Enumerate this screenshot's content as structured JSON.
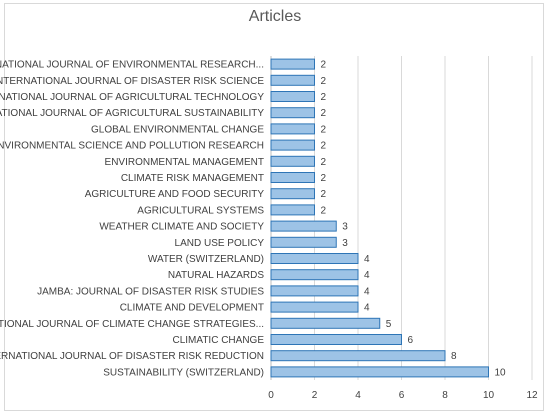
{
  "chart_data": {
    "type": "bar",
    "orientation": "horizontal",
    "title": "Articles",
    "xlabel": "",
    "ylabel": "",
    "xlim": [
      0,
      12
    ],
    "xticks": [
      0,
      2,
      4,
      6,
      8,
      10,
      12
    ],
    "grid": "vertical",
    "categories": [
      "INTERNATIONAL JOURNAL OF ENVIRONMENTAL RESEARCH...",
      "INTERNATIONAL JOURNAL OF DISASTER RISK SCIENCE",
      "INTERNATIONAL JOURNAL OF AGRICULTURAL TECHNOLOGY",
      "INTERNATIONAL JOURNAL OF AGRICULTURAL SUSTAINABILITY",
      "GLOBAL ENVIRONMENTAL CHANGE",
      "ENVIRONMENTAL SCIENCE AND POLLUTION RESEARCH",
      "ENVIRONMENTAL MANAGEMENT",
      "CLIMATE RISK MANAGEMENT",
      "AGRICULTURE AND FOOD SECURITY",
      "AGRICULTURAL SYSTEMS",
      "WEATHER CLIMATE AND SOCIETY",
      "LAND USE POLICY",
      "WATER (SWITZERLAND)",
      "NATURAL HAZARDS",
      "JAMBA: JOURNAL OF DISASTER RISK STUDIES",
      "CLIMATE AND DEVELOPMENT",
      "INTERNATIONAL JOURNAL OF CLIMATE CHANGE STRATEGIES...",
      "CLIMATIC CHANGE",
      "INTERNATIONAL JOURNAL OF DISASTER RISK REDUCTION",
      "SUSTAINABILITY (SWITZERLAND)"
    ],
    "values": [
      2,
      2,
      2,
      2,
      2,
      2,
      2,
      2,
      2,
      2,
      3,
      3,
      4,
      4,
      4,
      4,
      5,
      6,
      8,
      10
    ],
    "colors": {
      "bar_fill": "#9dc3e6",
      "bar_stroke": "#2e75b6",
      "grid": "#d9d9d9",
      "axis": "#bfbfbf",
      "text": "#404040"
    }
  }
}
